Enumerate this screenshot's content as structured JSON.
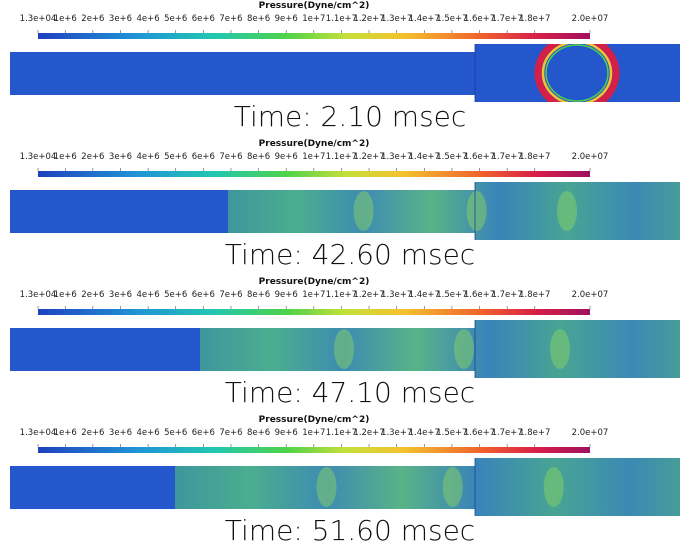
{
  "colorbar": {
    "title": "Pressure(Dyne/cm^2)",
    "range": [
      13000,
      20000000
    ],
    "ticks": [
      {
        "value": 13000,
        "label": "1.3e+04"
      },
      {
        "value": 1000000,
        "label": "1e+6"
      },
      {
        "value": 2000000,
        "label": "2e+6"
      },
      {
        "value": 3000000,
        "label": "3e+6"
      },
      {
        "value": 4000000,
        "label": "4e+6"
      },
      {
        "value": 5000000,
        "label": "5e+6"
      },
      {
        "value": 6000000,
        "label": "6e+6"
      },
      {
        "value": 7000000,
        "label": "7e+6"
      },
      {
        "value": 8000000,
        "label": "8e+6"
      },
      {
        "value": 9000000,
        "label": "9e+6"
      },
      {
        "value": 10000000,
        "label": "1e+7"
      },
      {
        "value": 11000000,
        "label": "1.1e+7"
      },
      {
        "value": 12000000,
        "label": "1.2e+7"
      },
      {
        "value": 13000000,
        "label": "1.3e+7"
      },
      {
        "value": 14000000,
        "label": "1.4e+7"
      },
      {
        "value": 15000000,
        "label": "1.5e+7"
      },
      {
        "value": 16000000,
        "label": "1.6e+7"
      },
      {
        "value": 17000000,
        "label": "1.7e+7"
      },
      {
        "value": 18000000,
        "label": "1.8e+7"
      },
      {
        "value": 20000000,
        "label": "2.0e+07"
      }
    ]
  },
  "panels": [
    {
      "time": "Time: 2.10 msec"
    },
    {
      "time": "Time: 42.60 msec"
    },
    {
      "time": "Time: 47.10 msec"
    },
    {
      "time": "Time: 51.60 msec"
    }
  ]
}
